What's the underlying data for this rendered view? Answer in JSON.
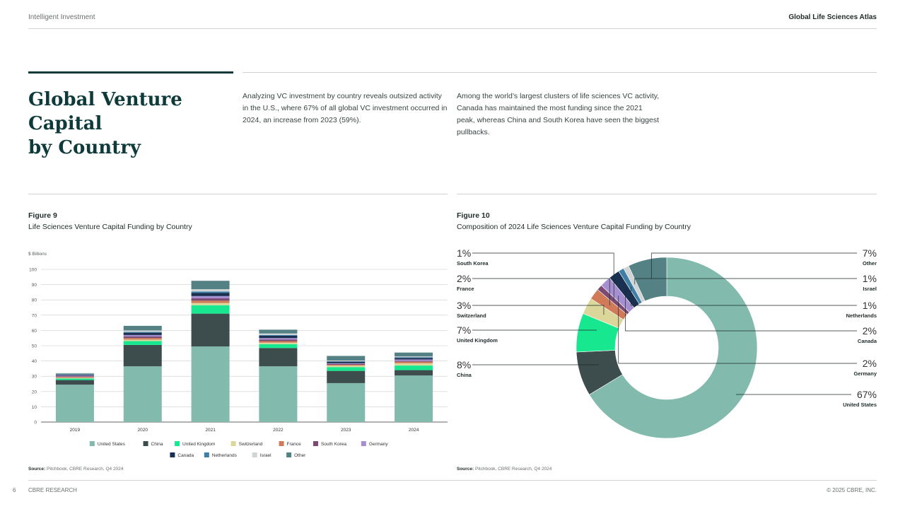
{
  "header": {
    "left": "Intelligent Investment",
    "right": "Global Life Sciences Atlas"
  },
  "title": {
    "line1": "Global Venture Capital",
    "line2": "by Country"
  },
  "intro": {
    "col1": "Analyzing VC investment by country reveals outsized activity in the U.S., where 67% of all global VC investment occurred in 2024, an increase from 2023 (59%).",
    "col2": "Among the world’s largest clusters of life sciences VC activity, Canada has maintained the most funding since the 2021 peak, whereas China and South Korea have seen the biggest pullbacks."
  },
  "figure9": {
    "label": "Figure 9",
    "subtitle": "Life Sciences Venture Capital Funding by Country",
    "source_label": "Source:",
    "source_text": " Pitchbook, CBRE Research, Q4 2024"
  },
  "figure10": {
    "label": "Figure 10",
    "subtitle": "Composition of 2024 Life Sciences Venture Capital Funding by Country",
    "source_label": "Source:",
    "source_text": " Pitchbook, CBRE Research, Q4 2024"
  },
  "colors": {
    "United States": "#82baad",
    "China": "#3d4c4c",
    "United Kingdom": "#17e88f",
    "Switzerland": "#dbd79b",
    "France": "#d07a58",
    "South Korea": "#7a4a72",
    "Germany": "#a58fd0",
    "Canada": "#1a3050",
    "Netherlands": "#3f7ea5",
    "Israel": "#d0d4d4",
    "Other": "#538184"
  },
  "chart_data": [
    {
      "type": "bar",
      "stacked": true,
      "title": "Life Sciences Venture Capital Funding by Country",
      "ylabel": "$ Billions",
      "ylim": [
        0,
        100
      ],
      "yticks": [
        0,
        10,
        20,
        30,
        40,
        50,
        60,
        70,
        80,
        90,
        100
      ],
      "categories": [
        "2019",
        "2020",
        "2021",
        "2022",
        "2023",
        "2024"
      ],
      "series": [
        {
          "name": "United States",
          "values": [
            24.5,
            36.5,
            49.5,
            36.5,
            25.5,
            30.5
          ]
        },
        {
          "name": "China",
          "values": [
            3,
            14,
            21.5,
            12,
            8,
            3.5
          ]
        },
        {
          "name": "United Kingdom",
          "values": [
            1,
            2.5,
            5.5,
            2.5,
            2.5,
            3
          ]
        },
        {
          "name": "Switzerland",
          "values": [
            0.5,
            1,
            1.5,
            1,
            1,
            1.5
          ]
        },
        {
          "name": "France",
          "values": [
            0.5,
            1,
            1.5,
            1,
            0.5,
            1
          ]
        },
        {
          "name": "South Korea",
          "values": [
            0.5,
            1,
            1.5,
            1,
            0.5,
            0.5
          ]
        },
        {
          "name": "Germany",
          "values": [
            0.5,
            1,
            1.5,
            1,
            0.5,
            1
          ]
        },
        {
          "name": "Canada",
          "values": [
            0.5,
            1.5,
            2,
            1.5,
            1,
            1
          ]
        },
        {
          "name": "Netherlands",
          "values": [
            0.3,
            0.5,
            1,
            0.5,
            0.3,
            0.5
          ]
        },
        {
          "name": "Israel",
          "values": [
            0.3,
            1,
            1.5,
            1,
            0.5,
            0.5
          ]
        },
        {
          "name": "Other",
          "values": [
            0.4,
            3,
            5.5,
            2.5,
            3,
            2.5
          ]
        }
      ],
      "legend_order": [
        "United States",
        "China",
        "United Kingdom",
        "Switzerland",
        "France",
        "South Korea",
        "Germany",
        "Canada",
        "Netherlands",
        "Israel",
        "Other"
      ]
    },
    {
      "type": "pie",
      "donut": true,
      "title": "Composition of 2024 Life Sciences Venture Capital Funding by Country",
      "slices": [
        {
          "name": "United States",
          "value": 67,
          "label": "67%"
        },
        {
          "name": "China",
          "value": 8,
          "label": "8%"
        },
        {
          "name": "United Kingdom",
          "value": 7,
          "label": "7%"
        },
        {
          "name": "Switzerland",
          "value": 3,
          "label": "3%"
        },
        {
          "name": "France",
          "value": 2,
          "label": "2%"
        },
        {
          "name": "South Korea",
          "value": 1,
          "label": "1%"
        },
        {
          "name": "Germany",
          "value": 2,
          "label": "2%"
        },
        {
          "name": "Canada",
          "value": 2,
          "label": "2%"
        },
        {
          "name": "Netherlands",
          "value": 1,
          "label": "1%"
        },
        {
          "name": "Israel",
          "value": 1,
          "label": "1%"
        },
        {
          "name": "Other",
          "value": 7,
          "label": "7%"
        }
      ]
    }
  ],
  "footer": {
    "page": "6",
    "left": "CBRE RESEARCH",
    "right": "© 2025 CBRE, INC."
  }
}
